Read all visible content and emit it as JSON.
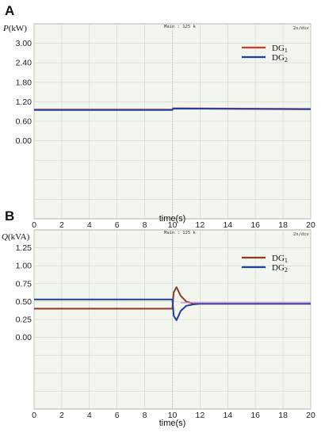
{
  "chart_data": [
    {
      "panel": "A",
      "type": "line",
      "ylabel_var": "P",
      "ylabel_unit": "(kW)",
      "xlabel": "time(s)",
      "scope_main": "Main : 125 k",
      "scope_div": "2s/div",
      "xticks": [
        "0",
        "2",
        "4",
        "6",
        "8",
        "10",
        "12",
        "14",
        "16",
        "18",
        "20"
      ],
      "yticks": [
        {
          "label": "3.00",
          "value": 3.0
        },
        {
          "label": "2.40",
          "value": 2.4
        },
        {
          "label": "1.80",
          "value": 1.8
        },
        {
          "label": "1.20",
          "value": 1.2
        },
        {
          "label": "0.60",
          "value": 0.6
        },
        {
          "label": "0.00",
          "value": 0.0
        }
      ],
      "xlim": [
        0,
        20
      ],
      "ylim": [
        -2.4,
        3.6
      ],
      "grid": true,
      "legend_position": "top-right",
      "series": [
        {
          "name": "DG",
          "subscript": "1",
          "color": "#d93a2a",
          "x": [
            0,
            10,
            10.05,
            20
          ],
          "y": [
            0.96,
            0.96,
            1.0,
            0.98
          ]
        },
        {
          "name": "DG",
          "subscript": "2",
          "color": "#1f3f9e",
          "x": [
            0,
            10,
            10.05,
            20
          ],
          "y": [
            0.95,
            0.95,
            0.99,
            0.97
          ]
        }
      ]
    },
    {
      "panel": "B",
      "type": "line",
      "ylabel_var": "Q",
      "ylabel_unit": "(kVA)",
      "xlabel": "time(s)",
      "scope_main": "Main : 125 k",
      "scope_div": "2s/div",
      "xticks": [
        "0",
        "2",
        "4",
        "6",
        "8",
        "10",
        "12",
        "14",
        "16",
        "18",
        "20"
      ],
      "yticks": [
        {
          "label": "1.25",
          "value": 1.25
        },
        {
          "label": "1.00",
          "value": 1.0
        },
        {
          "label": "0.75",
          "value": 0.75
        },
        {
          "label": "0.50",
          "value": 0.5
        },
        {
          "label": "0.25",
          "value": 0.25
        },
        {
          "label": "0.00",
          "value": 0.0
        }
      ],
      "xlim": [
        0,
        20
      ],
      "ylim": [
        -1.0,
        1.5
      ],
      "grid": true,
      "legend_position": "top-right",
      "series": [
        {
          "name": "DG",
          "subscript": "1",
          "color": "#8a3a22",
          "x": [
            0,
            10,
            10.1,
            10.3,
            10.6,
            11.0,
            11.5,
            12,
            20
          ],
          "y": [
            0.4,
            0.4,
            0.63,
            0.7,
            0.58,
            0.5,
            0.47,
            0.47,
            0.47
          ]
        },
        {
          "name": "DG",
          "subscript": "2",
          "color": "#1f3f9e",
          "x": [
            0,
            10,
            10.1,
            10.3,
            10.6,
            11.0,
            11.5,
            12,
            20
          ],
          "y": [
            0.53,
            0.53,
            0.3,
            0.24,
            0.37,
            0.44,
            0.46,
            0.47,
            0.47
          ]
        },
        {
          "name": "",
          "subscript": "",
          "color": "#e07ad8",
          "x": [
            10.6,
            20
          ],
          "y": [
            0.485,
            0.485
          ]
        }
      ]
    }
  ]
}
